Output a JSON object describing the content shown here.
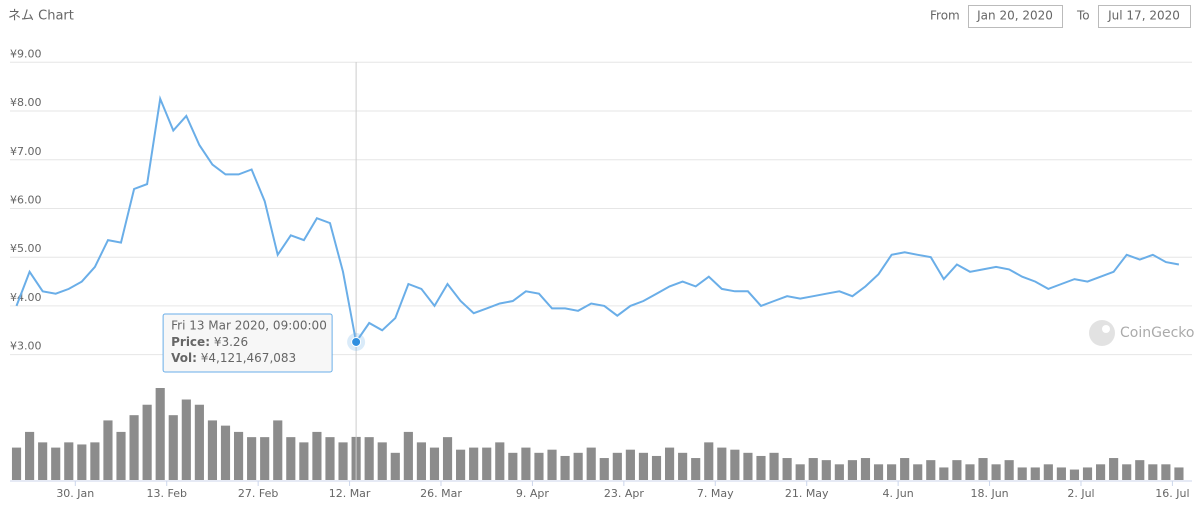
{
  "chart_data": {
    "type": "line",
    "title": "ネム Chart",
    "range_selector": {
      "from_label": "From",
      "from": "Jan 20, 2020",
      "to_label": "To",
      "to": "Jul 17, 2020"
    },
    "x": [
      "2020-01-21",
      "2020-01-23",
      "2020-01-25",
      "2020-01-27",
      "2020-01-29",
      "2020-01-31",
      "2020-02-02",
      "2020-02-04",
      "2020-02-06",
      "2020-02-08",
      "2020-02-10",
      "2020-02-12",
      "2020-02-14",
      "2020-02-16",
      "2020-02-18",
      "2020-02-20",
      "2020-02-22",
      "2020-02-24",
      "2020-02-26",
      "2020-02-28",
      "2020-03-01",
      "2020-03-03",
      "2020-03-05",
      "2020-03-07",
      "2020-03-09",
      "2020-03-11",
      "2020-03-13",
      "2020-03-15",
      "2020-03-17",
      "2020-03-19",
      "2020-03-21",
      "2020-03-23",
      "2020-03-25",
      "2020-03-27",
      "2020-03-29",
      "2020-03-31",
      "2020-04-02",
      "2020-04-04",
      "2020-04-06",
      "2020-04-08",
      "2020-04-10",
      "2020-04-12",
      "2020-04-14",
      "2020-04-16",
      "2020-04-18",
      "2020-04-20",
      "2020-04-22",
      "2020-04-24",
      "2020-04-26",
      "2020-04-28",
      "2020-04-30",
      "2020-05-02",
      "2020-05-04",
      "2020-05-06",
      "2020-05-08",
      "2020-05-10",
      "2020-05-12",
      "2020-05-14",
      "2020-05-16",
      "2020-05-18",
      "2020-05-20",
      "2020-05-22",
      "2020-05-24",
      "2020-05-26",
      "2020-05-28",
      "2020-05-30",
      "2020-06-01",
      "2020-06-03",
      "2020-06-05",
      "2020-06-07",
      "2020-06-09",
      "2020-06-11",
      "2020-06-13",
      "2020-06-15",
      "2020-06-17",
      "2020-06-19",
      "2020-06-21",
      "2020-06-23",
      "2020-06-25",
      "2020-06-27",
      "2020-06-29",
      "2020-07-01",
      "2020-07-03",
      "2020-07-05",
      "2020-07-07",
      "2020-07-09",
      "2020-07-11",
      "2020-07-13",
      "2020-07-15",
      "2020-07-17"
    ],
    "values": [
      4.0,
      4.7,
      4.3,
      4.25,
      4.35,
      4.5,
      4.8,
      5.35,
      5.3,
      6.4,
      6.5,
      8.25,
      7.6,
      7.9,
      7.3,
      6.9,
      6.7,
      6.7,
      6.8,
      6.15,
      5.05,
      5.45,
      5.35,
      5.8,
      5.7,
      4.7,
      3.26,
      3.65,
      3.5,
      3.75,
      4.45,
      4.35,
      4.0,
      4.45,
      4.1,
      3.85,
      3.95,
      4.05,
      4.1,
      4.3,
      4.25,
      3.95,
      3.95,
      3.9,
      4.05,
      4.0,
      3.8,
      4.0,
      4.1,
      4.25,
      4.4,
      4.5,
      4.4,
      4.6,
      4.35,
      4.3,
      4.3,
      4.0,
      4.1,
      4.2,
      4.15,
      4.2,
      4.25,
      4.3,
      4.2,
      4.4,
      4.65,
      5.05,
      5.1,
      5.05,
      5.0,
      4.55,
      4.85,
      4.7,
      4.75,
      4.8,
      4.75,
      4.6,
      4.5,
      4.35,
      4.45,
      4.55,
      4.5,
      4.6,
      4.7,
      5.05,
      4.95,
      5.05,
      4.9,
      4.85
    ],
    "volume": [
      3100000000.0,
      4600000000.0,
      3600000000.0,
      3100000000.0,
      3600000000.0,
      3400000000.0,
      3600000000.0,
      5700000000.0,
      4600000000.0,
      6200000000.0,
      7200000000.0,
      8800000000.0,
      6200000000.0,
      7700000000.0,
      7200000000.0,
      5700000000.0,
      5200000000.0,
      4600000000.0,
      4100000000.0,
      4100000000.0,
      5700000000.0,
      4100000000.0,
      3600000000.0,
      4600000000.0,
      4100000000.0,
      3600000000.0,
      4121467083,
      4100000000.0,
      3600000000.0,
      2600000000.0,
      4600000000.0,
      3600000000.0,
      3100000000.0,
      4100000000.0,
      2900000000.0,
      3100000000.0,
      3100000000.0,
      3600000000.0,
      2600000000.0,
      3100000000.0,
      2600000000.0,
      2900000000.0,
      2300000000.0,
      2600000000.0,
      3100000000.0,
      2100000000.0,
      2600000000.0,
      2900000000.0,
      2600000000.0,
      2300000000.0,
      3100000000.0,
      2600000000.0,
      2100000000.0,
      3600000000.0,
      3100000000.0,
      2900000000.0,
      2600000000.0,
      2300000000.0,
      2600000000.0,
      2100000000.0,
      1500000000.0,
      2100000000.0,
      1900000000.0,
      1500000000.0,
      1900000000.0,
      2100000000.0,
      1500000000.0,
      1500000000.0,
      2100000000.0,
      1500000000.0,
      1900000000.0,
      1200000000.0,
      1900000000.0,
      1500000000.0,
      2100000000.0,
      1500000000.0,
      1900000000.0,
      1200000000.0,
      1200000000.0,
      1500000000.0,
      1200000000.0,
      1000000000.0,
      1200000000.0,
      1500000000.0,
      2100000000.0,
      1500000000.0,
      1900000000.0,
      1500000000.0,
      1500000000.0,
      1200000000.0
    ],
    "color": "#6aaee8",
    "volume_color": "#8c8c8c",
    "xlim": [
      "2020-01-20",
      "2020-07-19"
    ],
    "xticks": [
      {
        "value": "2020-01-30",
        "label": "30. Jan"
      },
      {
        "value": "2020-02-13",
        "label": "13. Feb"
      },
      {
        "value": "2020-02-27",
        "label": "27. Feb"
      },
      {
        "value": "2020-03-12",
        "label": "12. Mar"
      },
      {
        "value": "2020-03-26",
        "label": "26. Mar"
      },
      {
        "value": "2020-04-09",
        "label": "9. Apr"
      },
      {
        "value": "2020-04-23",
        "label": "23. Apr"
      },
      {
        "value": "2020-05-07",
        "label": "7. May"
      },
      {
        "value": "2020-05-21",
        "label": "21. May"
      },
      {
        "value": "2020-06-04",
        "label": "4. Jun"
      },
      {
        "value": "2020-06-18",
        "label": "18. Jun"
      },
      {
        "value": "2020-07-02",
        "label": "2. Jul"
      },
      {
        "value": "2020-07-16",
        "label": "16. Jul"
      }
    ],
    "ylim": [
      2.5,
      9.15
    ],
    "yticks": [
      {
        "value": 3,
        "label": "¥3.00"
      },
      {
        "value": 4,
        "label": "¥4.00"
      },
      {
        "value": 5,
        "label": "¥5.00"
      },
      {
        "value": 6,
        "label": "¥6.00"
      },
      {
        "value": 7,
        "label": "¥7.00"
      },
      {
        "value": 8,
        "label": "¥8.00"
      },
      {
        "value": 9,
        "label": "¥9.00"
      }
    ],
    "grid": true,
    "tooltip": {
      "x": "2020-03-13",
      "date": "Fri 13 Mar 2020, 09:00:00",
      "price_label": "Price:",
      "price": "¥3.26",
      "vol_label": "Vol:",
      "vol": "¥4,121,467,083"
    },
    "watermark": "CoinGecko"
  }
}
